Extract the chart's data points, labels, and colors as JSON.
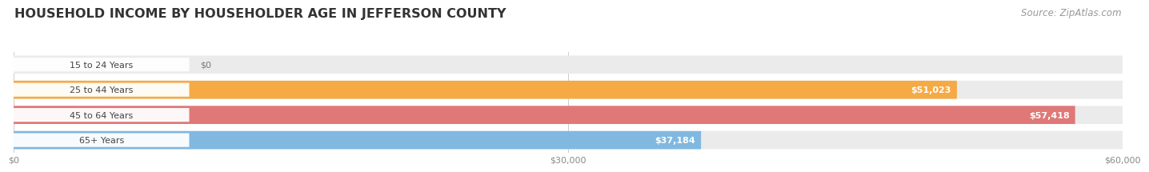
{
  "title": "HOUSEHOLD INCOME BY HOUSEHOLDER AGE IN JEFFERSON COUNTY",
  "source": "Source: ZipAtlas.com",
  "categories": [
    "15 to 24 Years",
    "25 to 44 Years",
    "45 to 64 Years",
    "65+ Years"
  ],
  "values": [
    0,
    51023,
    57418,
    37184
  ],
  "bar_colors": [
    "#f2a0b5",
    "#f5aa45",
    "#e07878",
    "#80b8e0"
  ],
  "row_bg_color": "#ebebeb",
  "pill_bg_color": "#ffffff",
  "xlim": [
    0,
    60000
  ],
  "xticks": [
    0,
    30000,
    60000
  ],
  "xticklabels": [
    "$0",
    "$30,000",
    "$60,000"
  ],
  "background_color": "#ffffff",
  "title_fontsize": 11.5,
  "source_fontsize": 8.5,
  "bar_label_fontsize": 8,
  "value_label_fontsize": 8
}
